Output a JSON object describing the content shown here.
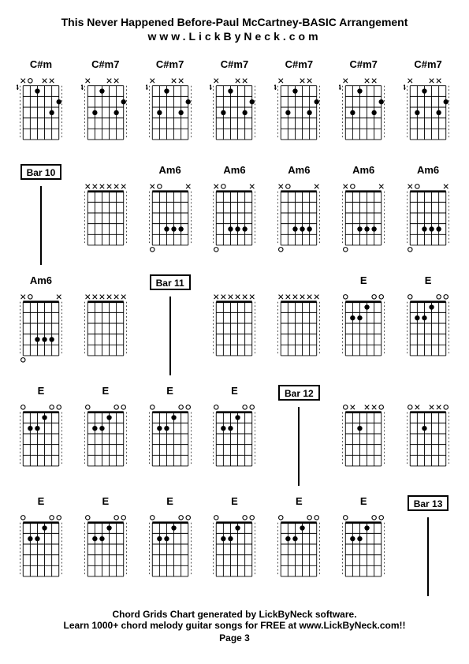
{
  "header": {
    "title": "This Never Happened Before-Paul McCartney-BASIC Arrangement",
    "subtitle": "www.LickByNeck.com"
  },
  "footer": {
    "line1": "Chord Grids Chart generated by LickByNeck software.",
    "line2": "Learn 1000+ chord melody guitar songs for FREE at www.LickByNeck.com!!",
    "page": "Page 3"
  },
  "chords": [
    {
      "type": "chord",
      "label": "C#m",
      "fret": "4",
      "top": [
        "x",
        "o",
        "",
        "x",
        "x",
        ""
      ],
      "dots": [
        {
          "s": 3,
          "f": 1
        },
        {
          "s": 5,
          "f": 3
        },
        {
          "s": 6,
          "f": 2
        }
      ],
      "opens": [
        2,
        4
      ]
    },
    {
      "type": "chord",
      "label": "C#m7",
      "fret": "4",
      "top": [
        "x",
        "",
        "",
        "x",
        "x",
        ""
      ],
      "dots": [
        {
          "s": 2,
          "f": 3
        },
        {
          "s": 3,
          "f": 1
        },
        {
          "s": 5,
          "f": 3
        },
        {
          "s": 6,
          "f": 2
        }
      ],
      "opens": [
        4
      ]
    },
    {
      "type": "chord",
      "label": "C#m7",
      "fret": "4",
      "top": [
        "x",
        "",
        "",
        "x",
        "x",
        ""
      ],
      "dots": [
        {
          "s": 2,
          "f": 3
        },
        {
          "s": 3,
          "f": 1
        },
        {
          "s": 5,
          "f": 3
        },
        {
          "s": 6,
          "f": 2
        }
      ],
      "opens": [
        4
      ]
    },
    {
      "type": "chord",
      "label": "C#m7",
      "fret": "4",
      "top": [
        "x",
        "",
        "",
        "x",
        "x",
        ""
      ],
      "dots": [
        {
          "s": 2,
          "f": 3
        },
        {
          "s": 3,
          "f": 1
        },
        {
          "s": 5,
          "f": 3
        },
        {
          "s": 6,
          "f": 2
        }
      ],
      "opens": [
        4
      ]
    },
    {
      "type": "chord",
      "label": "C#m7",
      "fret": "4",
      "top": [
        "x",
        "",
        "",
        "x",
        "x",
        ""
      ],
      "dots": [
        {
          "s": 2,
          "f": 3
        },
        {
          "s": 3,
          "f": 1
        },
        {
          "s": 5,
          "f": 3
        },
        {
          "s": 6,
          "f": 2
        }
      ],
      "opens": [
        4
      ]
    },
    {
      "type": "chord",
      "label": "C#m7",
      "fret": "4",
      "top": [
        "x",
        "",
        "",
        "x",
        "x",
        ""
      ],
      "dots": [
        {
          "s": 2,
          "f": 3
        },
        {
          "s": 3,
          "f": 1
        },
        {
          "s": 5,
          "f": 3
        },
        {
          "s": 6,
          "f": 2
        }
      ],
      "opens": [
        4
      ]
    },
    {
      "type": "chord",
      "label": "C#m7",
      "fret": "4",
      "top": [
        "x",
        "",
        "",
        "x",
        "x",
        ""
      ],
      "dots": [
        {
          "s": 2,
          "f": 3
        },
        {
          "s": 3,
          "f": 1
        },
        {
          "s": 5,
          "f": 3
        },
        {
          "s": 6,
          "f": 2
        }
      ],
      "opens": [
        4
      ]
    },
    {
      "type": "bar",
      "label": "Bar 10"
    },
    {
      "type": "chord",
      "label": "",
      "fret": "",
      "top": [
        "x",
        "x",
        "x",
        "x",
        "x",
        "x"
      ],
      "dots": [],
      "opens": []
    },
    {
      "type": "chord",
      "label": "Am6",
      "fret": "",
      "top": [
        "x",
        "o",
        "",
        "",
        "",
        "x"
      ],
      "dots": [
        {
          "s": 3,
          "f": 4
        },
        {
          "s": 4,
          "f": 4
        },
        {
          "s": 5,
          "f": 4
        }
      ],
      "opens": [
        2,
        6
      ],
      "openBottom": [
        1
      ]
    },
    {
      "type": "chord",
      "label": "Am6",
      "fret": "",
      "top": [
        "x",
        "o",
        "",
        "",
        "",
        "x"
      ],
      "dots": [
        {
          "s": 3,
          "f": 4
        },
        {
          "s": 4,
          "f": 4
        },
        {
          "s": 5,
          "f": 4
        }
      ],
      "opens": [
        2,
        6
      ],
      "openBottom": [
        1
      ]
    },
    {
      "type": "chord",
      "label": "Am6",
      "fret": "",
      "top": [
        "x",
        "o",
        "",
        "",
        "",
        "x"
      ],
      "dots": [
        {
          "s": 3,
          "f": 4
        },
        {
          "s": 4,
          "f": 4
        },
        {
          "s": 5,
          "f": 4
        }
      ],
      "opens": [
        2,
        6
      ],
      "openBottom": [
        1
      ]
    },
    {
      "type": "chord",
      "label": "Am6",
      "fret": "",
      "top": [
        "x",
        "o",
        "",
        "",
        "",
        "x"
      ],
      "dots": [
        {
          "s": 3,
          "f": 4
        },
        {
          "s": 4,
          "f": 4
        },
        {
          "s": 5,
          "f": 4
        }
      ],
      "opens": [
        2,
        6
      ],
      "openBottom": [
        1
      ]
    },
    {
      "type": "chord",
      "label": "Am6",
      "fret": "",
      "top": [
        "x",
        "o",
        "",
        "",
        "",
        "x"
      ],
      "dots": [
        {
          "s": 3,
          "f": 4
        },
        {
          "s": 4,
          "f": 4
        },
        {
          "s": 5,
          "f": 4
        }
      ],
      "opens": [
        2,
        6
      ],
      "openBottom": [
        1
      ]
    },
    {
      "type": "chord",
      "label": "Am6",
      "fret": "",
      "top": [
        "x",
        "o",
        "",
        "",
        "",
        "x"
      ],
      "dots": [
        {
          "s": 3,
          "f": 4
        },
        {
          "s": 4,
          "f": 4
        },
        {
          "s": 5,
          "f": 4
        }
      ],
      "opens": [
        2,
        6
      ],
      "openBottom": [
        1
      ]
    },
    {
      "type": "chord",
      "label": "",
      "fret": "",
      "top": [
        "x",
        "x",
        "x",
        "x",
        "x",
        "x"
      ],
      "dots": [],
      "opens": []
    },
    {
      "type": "bar",
      "label": "Bar 11"
    },
    {
      "type": "chord",
      "label": "",
      "fret": "",
      "top": [
        "x",
        "x",
        "x",
        "x",
        "x",
        "x"
      ],
      "dots": [],
      "opens": []
    },
    {
      "type": "chord",
      "label": "",
      "fret": "",
      "top": [
        "x",
        "x",
        "x",
        "x",
        "x",
        "x"
      ],
      "dots": [],
      "opens": []
    },
    {
      "type": "chord",
      "label": "E",
      "fret": "",
      "top": [
        "o",
        "",
        "",
        "",
        "o",
        "o"
      ],
      "dots": [
        {
          "s": 2,
          "f": 2
        },
        {
          "s": 3,
          "f": 2
        },
        {
          "s": 4,
          "f": 1
        }
      ],
      "opens": [
        1,
        5,
        6
      ]
    },
    {
      "type": "chord",
      "label": "E",
      "fret": "",
      "top": [
        "o",
        "",
        "",
        "",
        "o",
        "o"
      ],
      "dots": [
        {
          "s": 2,
          "f": 2
        },
        {
          "s": 3,
          "f": 2
        },
        {
          "s": 4,
          "f": 1
        }
      ],
      "opens": [
        1,
        5,
        6
      ]
    },
    {
      "type": "chord",
      "label": "E",
      "fret": "",
      "top": [
        "o",
        "",
        "",
        "",
        "o",
        "o"
      ],
      "dots": [
        {
          "s": 2,
          "f": 2
        },
        {
          "s": 3,
          "f": 2
        },
        {
          "s": 4,
          "f": 1
        }
      ],
      "opens": [
        1,
        5,
        6
      ]
    },
    {
      "type": "chord",
      "label": "E",
      "fret": "",
      "top": [
        "o",
        "",
        "",
        "",
        "o",
        "o"
      ],
      "dots": [
        {
          "s": 2,
          "f": 2
        },
        {
          "s": 3,
          "f": 2
        },
        {
          "s": 4,
          "f": 1
        }
      ],
      "opens": [
        1,
        5,
        6
      ]
    },
    {
      "type": "chord",
      "label": "E",
      "fret": "",
      "top": [
        "o",
        "",
        "",
        "",
        "o",
        "o"
      ],
      "dots": [
        {
          "s": 2,
          "f": 2
        },
        {
          "s": 3,
          "f": 2
        },
        {
          "s": 4,
          "f": 1
        }
      ],
      "opens": [
        1,
        5,
        6
      ]
    },
    {
      "type": "chord",
      "label": "E",
      "fret": "",
      "top": [
        "o",
        "",
        "",
        "",
        "o",
        "o"
      ],
      "dots": [
        {
          "s": 2,
          "f": 2
        },
        {
          "s": 3,
          "f": 2
        },
        {
          "s": 4,
          "f": 1
        }
      ],
      "opens": [
        1,
        5,
        6
      ]
    },
    {
      "type": "bar",
      "label": "Bar 12"
    },
    {
      "type": "chord",
      "label": "",
      "fret": "",
      "top": [
        "o",
        "x",
        "",
        "x",
        "x",
        "o"
      ],
      "dots": [
        {
          "s": 3,
          "f": 2
        }
      ],
      "opens": [
        1,
        6
      ]
    },
    {
      "type": "chord",
      "label": "",
      "fret": "",
      "top": [
        "o",
        "x",
        "",
        "x",
        "x",
        "o"
      ],
      "dots": [
        {
          "s": 3,
          "f": 2
        }
      ],
      "opens": [
        1,
        6
      ]
    },
    {
      "type": "chord",
      "label": "E",
      "fret": "",
      "top": [
        "o",
        "",
        "",
        "",
        "o",
        "o"
      ],
      "dots": [
        {
          "s": 2,
          "f": 2
        },
        {
          "s": 3,
          "f": 2
        },
        {
          "s": 4,
          "f": 1
        }
      ],
      "opens": [
        1,
        5,
        6
      ]
    },
    {
      "type": "chord",
      "label": "E",
      "fret": "",
      "top": [
        "o",
        "",
        "",
        "",
        "o",
        "o"
      ],
      "dots": [
        {
          "s": 2,
          "f": 2
        },
        {
          "s": 3,
          "f": 2
        },
        {
          "s": 4,
          "f": 1
        }
      ],
      "opens": [
        1,
        5,
        6
      ]
    },
    {
      "type": "chord",
      "label": "E",
      "fret": "",
      "top": [
        "o",
        "",
        "",
        "",
        "o",
        "o"
      ],
      "dots": [
        {
          "s": 2,
          "f": 2
        },
        {
          "s": 3,
          "f": 2
        },
        {
          "s": 4,
          "f": 1
        }
      ],
      "opens": [
        1,
        5,
        6
      ]
    },
    {
      "type": "chord",
      "label": "E",
      "fret": "",
      "top": [
        "o",
        "",
        "",
        "",
        "o",
        "o"
      ],
      "dots": [
        {
          "s": 2,
          "f": 2
        },
        {
          "s": 3,
          "f": 2
        },
        {
          "s": 4,
          "f": 1
        }
      ],
      "opens": [
        1,
        5,
        6
      ]
    },
    {
      "type": "chord",
      "label": "E",
      "fret": "",
      "top": [
        "o",
        "",
        "",
        "",
        "o",
        "o"
      ],
      "dots": [
        {
          "s": 2,
          "f": 2
        },
        {
          "s": 3,
          "f": 2
        },
        {
          "s": 4,
          "f": 1
        }
      ],
      "opens": [
        1,
        5,
        6
      ]
    },
    {
      "type": "chord",
      "label": "E",
      "fret": "",
      "top": [
        "o",
        "",
        "",
        "",
        "o",
        "o"
      ],
      "dots": [
        {
          "s": 2,
          "f": 2
        },
        {
          "s": 3,
          "f": 2
        },
        {
          "s": 4,
          "f": 1
        }
      ],
      "opens": [
        1,
        5,
        6
      ]
    },
    {
      "type": "bar",
      "label": "Bar 13"
    }
  ],
  "diagram": {
    "strings": 6,
    "frets": 5,
    "width": 50,
    "height": 75,
    "topMargin": 14,
    "leftMargin": 8,
    "dotRadius": 3.5,
    "openRadius": 3,
    "lineColor": "#000000",
    "dotColor": "#000000",
    "bgColor": "#ffffff"
  }
}
